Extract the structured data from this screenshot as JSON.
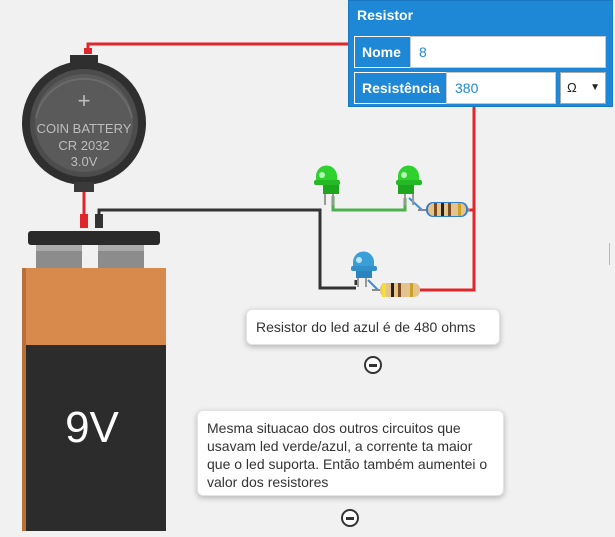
{
  "coin_battery": {
    "line1": "COIN BATTERY",
    "line2": "CR 2032",
    "line3": "3.0V",
    "plus": "+"
  },
  "battery_9v": {
    "label": "9V"
  },
  "resistor_panel": {
    "title": "Resistor",
    "name_label": "Nome",
    "name_value": "8",
    "resistance_label": "Resistência",
    "resistance_value": "380",
    "unit_value": "Ω"
  },
  "notes": [
    {
      "text": "Resistor do led azul é de 480 ohms"
    },
    {
      "text": "Mesma situacao dos outros circuitos que usavam led verde/azul, a corrente ta maior que o led suporta. Então também aumentei o valor dos resistores"
    }
  ],
  "colors": {
    "accent": "#1e87d6",
    "wire_red": "#e0262a",
    "wire_black": "#333333",
    "wire_green": "#4caf50",
    "led_green": "#2ed12e",
    "led_blue": "#3a9fd6",
    "battery_orange": "#d88a4c"
  }
}
